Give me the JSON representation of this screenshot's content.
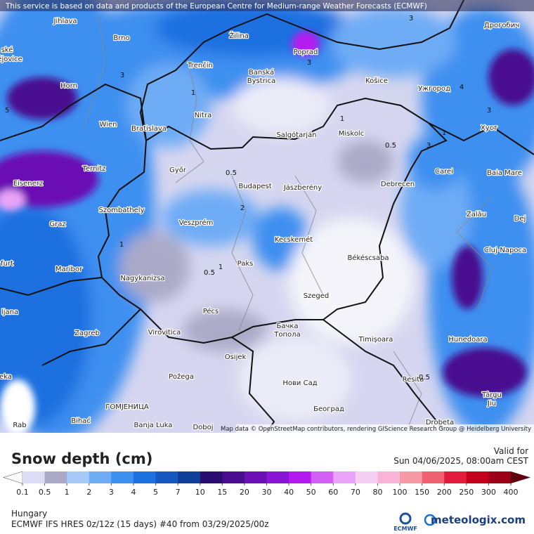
{
  "header": {
    "attribution": "This service is based on data and products of the European Centre for Medium-range Weather Forecasts (ECMWF)"
  },
  "map": {
    "cities": [
      "Jihlava",
      "ské",
      "ějovice",
      "Brno",
      "Žilina",
      "Poprad",
      "Дрогобич",
      "Trenčín",
      "Banská",
      "Bystrica",
      "Košice",
      "Ужгород",
      "Horn",
      "Nitra",
      "Wien",
      "Bratislava",
      "Salgótarján",
      "Miskolc",
      "Хуст",
      "Győr",
      "Ternitz",
      "Eisenerz",
      "Budapest",
      "Jászberény",
      "Debrecen",
      "Carei",
      "Baia Mare",
      "Szombathely",
      "Zalău",
      "Graz",
      "Veszprém",
      "Kecskemét",
      "Dej",
      "Cluj-Napoca",
      "furt",
      "Paks",
      "Békéscsaba",
      "Maribor",
      "Nagykanizsa",
      "Szeged",
      "ljana",
      "Pécs",
      "Zagreb",
      "Virovitica",
      "Бачка",
      "Топола",
      "Timișoara",
      "Hunedoara",
      "Osijek",
      "eka",
      "Požega",
      "Resita",
      "Нови Сад",
      "Târgu",
      "Jiu",
      "ГОМЈЕНИЦА",
      "Београд",
      "Bihać",
      "Banja Luka",
      "Doboj",
      "Drobeta",
      "Rab"
    ],
    "contour_labels": [
      "3",
      "3",
      "3",
      "1",
      "0.5",
      "0.5",
      "1",
      "0.5",
      "1",
      "2",
      "1",
      "4",
      "3",
      "5",
      "1",
      "3",
      "0.5"
    ],
    "credit": "Map data © OpenStreetMap contributors, rendering GIScience Research Group @ Heidelberg University"
  },
  "legend": {
    "title": "Snow depth (cm)",
    "valid_label": "Valid for",
    "valid_time": "Sun 04/06/2025, 08:00am CEST",
    "levels": [
      0.1,
      0.5,
      1,
      2,
      3,
      4,
      5,
      7,
      10,
      15,
      20,
      30,
      40,
      50,
      60,
      70,
      80,
      100,
      150,
      200,
      250,
      300,
      400
    ],
    "colors": [
      "#dcdcf5",
      "#aaaac8",
      "#a6c9f8",
      "#6eacf6",
      "#3d8ff0",
      "#1c70e0",
      "#1558c2",
      "#0f3f9a",
      "#2b0c72",
      "#4a0c90",
      "#6a10b5",
      "#8c14d6",
      "#b41bf0",
      "#d35ef5",
      "#e8a2f8",
      "#f5cdf5",
      "#f7b4d6",
      "#f69aa6",
      "#f06070",
      "#e01b3c",
      "#c4001f",
      "#9c0018"
    ],
    "under_color": "#ffffff",
    "over_color": "#5e000e"
  },
  "footer": {
    "region": "Hungary",
    "model": "ECMWF IFS HRES 0z/12z (15 days) #40 from  03/29/2025/00z",
    "ecmwf_logo": "ECMWF",
    "brand": "meteologix.com"
  }
}
